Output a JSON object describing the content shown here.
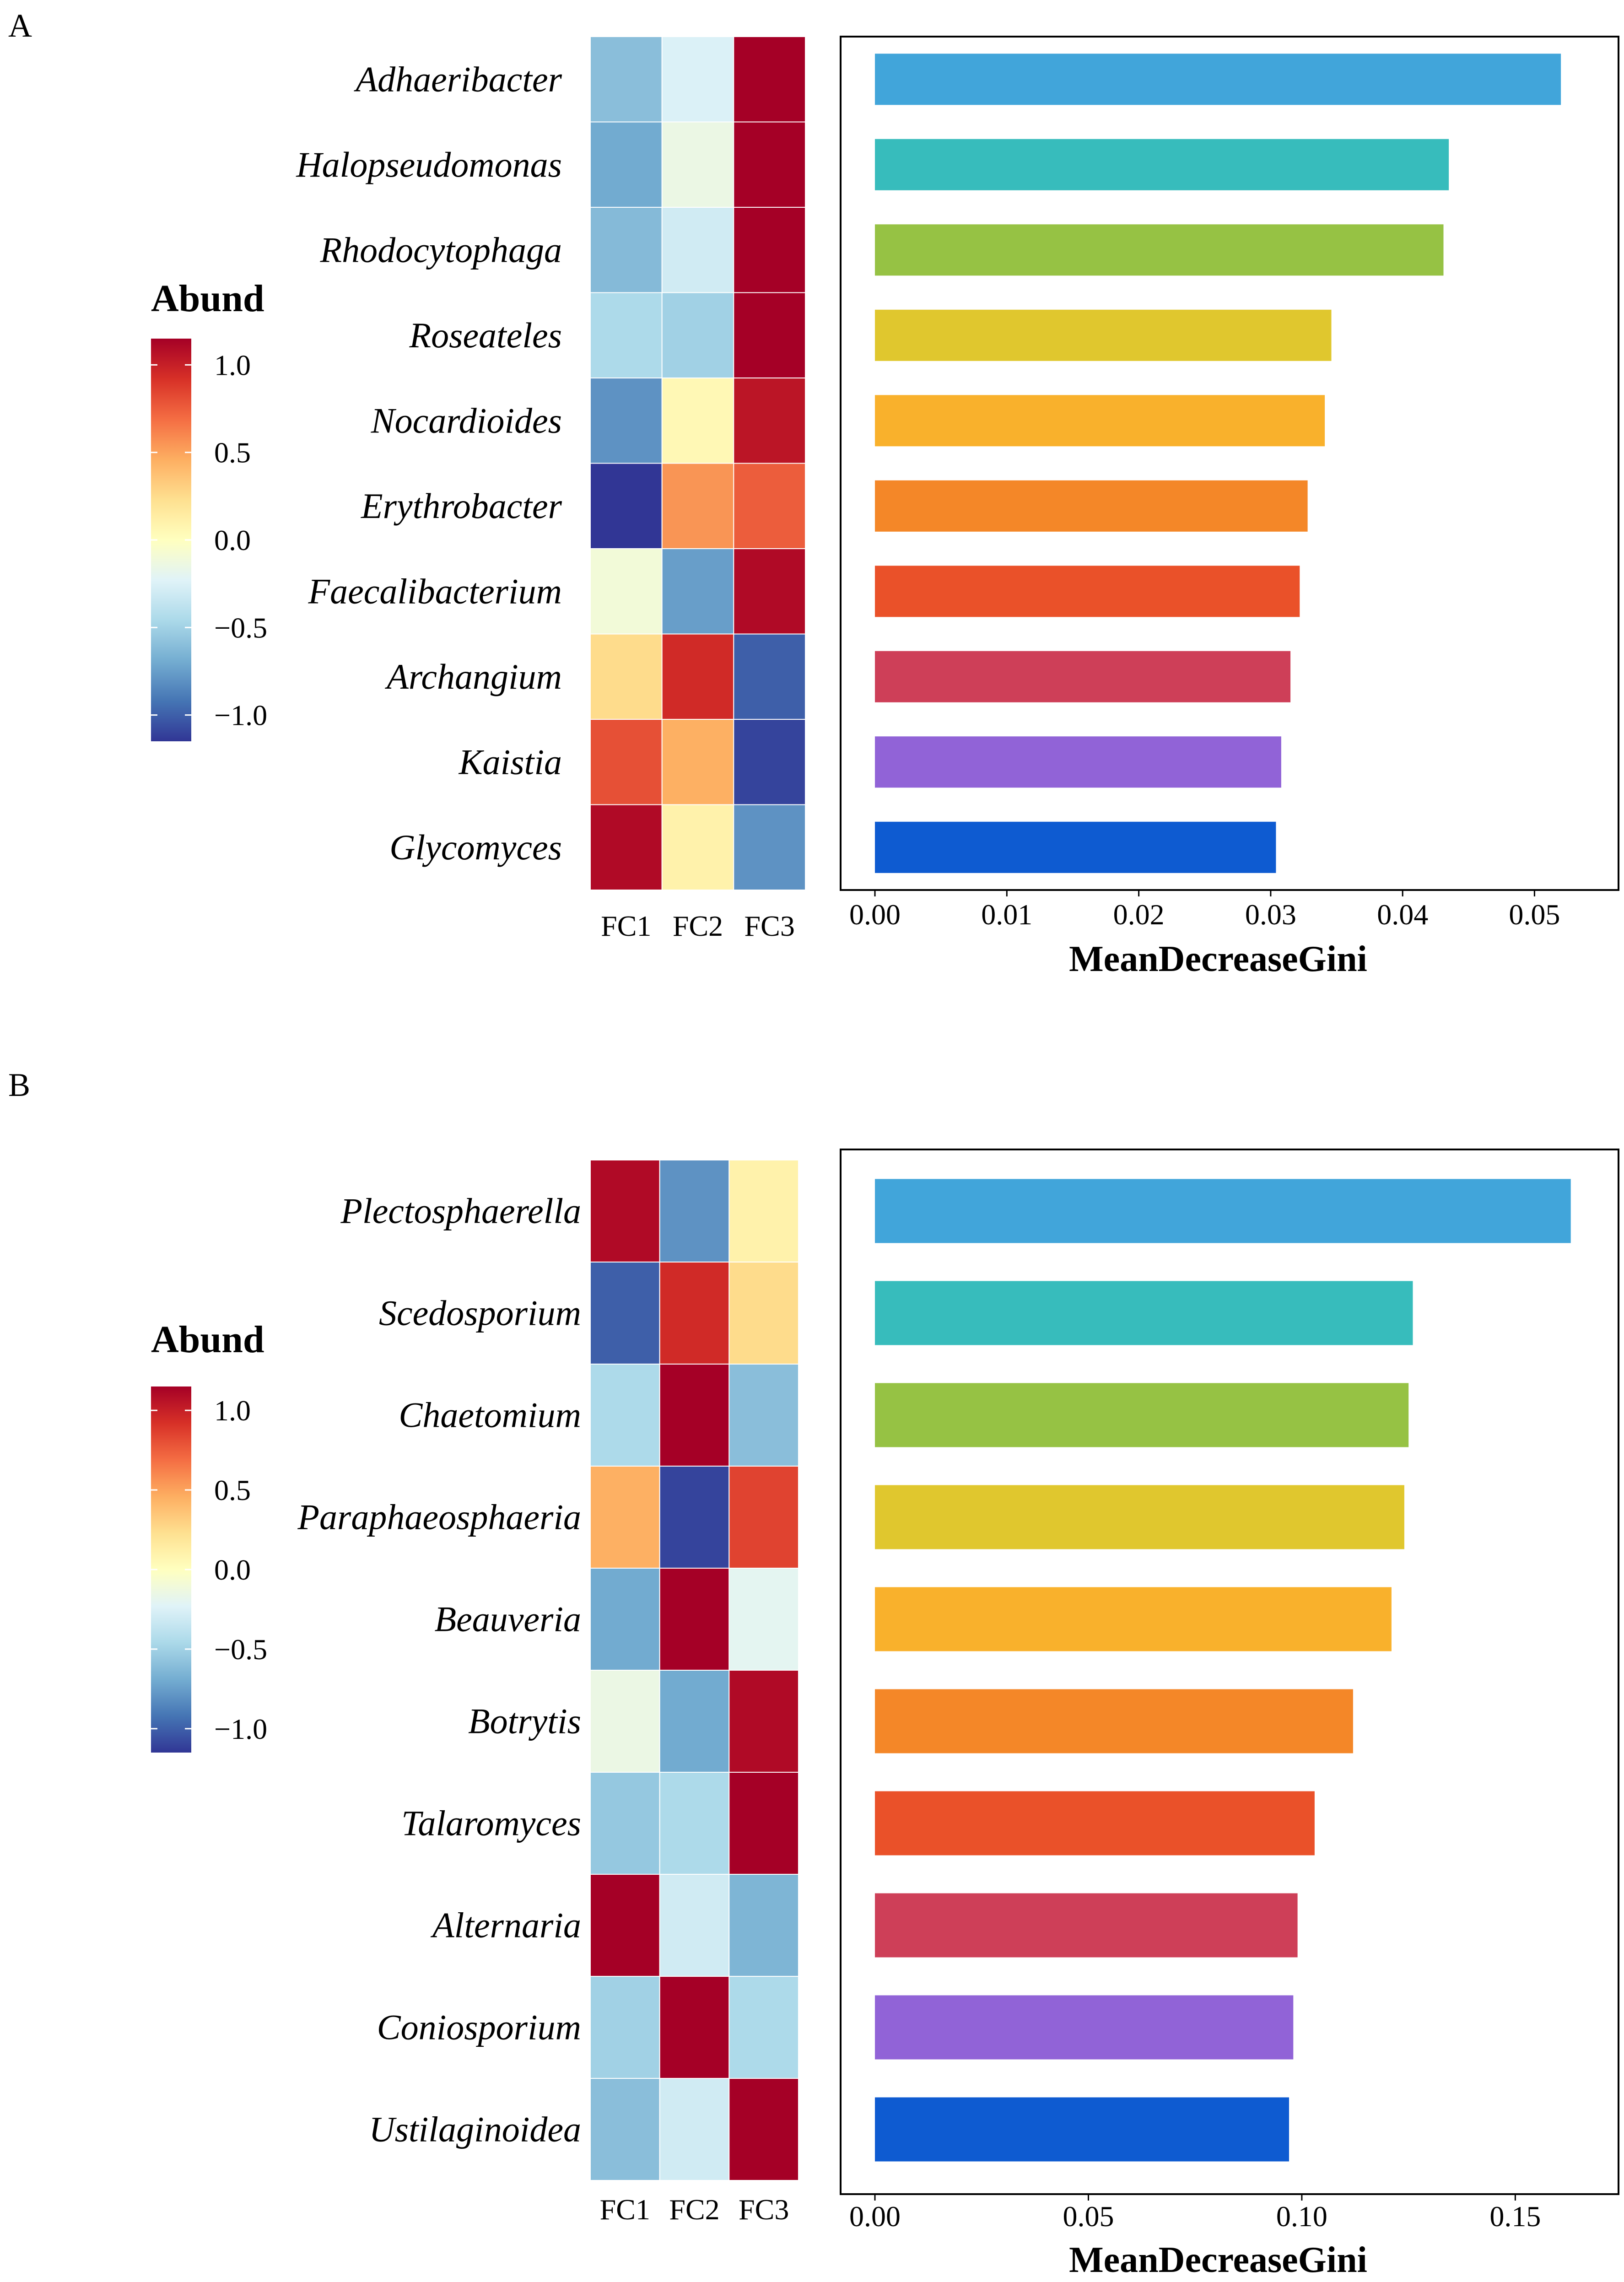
{
  "colors": {
    "low": "#313695",
    "mid": "#FFFFBF",
    "high": "#A50026",
    "bar_colors": [
      "#41A5DA",
      "#37BCBC",
      "#96C244",
      "#E0C72E",
      "#F9B12C",
      "#F48728",
      "#EA5129",
      "#CE3F58",
      "#9163D7",
      "#0E5BD1"
    ]
  },
  "chart_data": [
    {
      "panel": "A",
      "type": "bar",
      "orientation": "horizontal",
      "categories": [
        "Adhaeribacter",
        "Halopseudomonas",
        "Rhodocytophaga",
        "Roseateles",
        "Nocardioides",
        "Erythrobacter",
        "Faecalibacterium",
        "Archangium",
        "Kaistia",
        "Glycomyces"
      ],
      "values": [
        0.052,
        0.0435,
        0.0431,
        0.0346,
        0.0341,
        0.0328,
        0.0322,
        0.0315,
        0.0308,
        0.0304
      ],
      "xlabel": "MeanDecreaseGini",
      "xlim": [
        0,
        0.0555
      ],
      "xticks": [
        0,
        0.01,
        0.02,
        0.03,
        0.04,
        0.05
      ],
      "xtick_labels": [
        "0.00",
        "0.01",
        "0.02",
        "0.03",
        "0.04",
        "0.05"
      ],
      "heatmap": {
        "columns": [
          "FC1",
          "FC2",
          "FC3"
        ],
        "values": [
          [
            -0.6,
            -0.25,
            1.15
          ],
          [
            -0.7,
            -0.15,
            1.15
          ],
          [
            -0.62,
            -0.3,
            1.15
          ],
          [
            -0.45,
            -0.5,
            1.15
          ],
          [
            -0.8,
            0.05,
            1.05
          ],
          [
            -1.15,
            0.55,
            0.75
          ],
          [
            -0.1,
            -0.75,
            1.1
          ],
          [
            0.25,
            0.95,
            -1.0
          ],
          [
            0.8,
            0.45,
            -1.1
          ],
          [
            1.1,
            0.1,
            -0.8
          ]
        ]
      },
      "legend": {
        "title": "Abund",
        "ticks": [
          1.0,
          0.5,
          0.0,
          -0.5,
          -1.0
        ],
        "tick_labels": [
          "1.0",
          "0.5",
          "0.0",
          "−0.5",
          "−1.0"
        ],
        "range": [
          -1.15,
          1.15
        ]
      }
    },
    {
      "panel": "B",
      "type": "bar",
      "orientation": "horizontal",
      "categories": [
        "Plectosphaerella",
        "Scedosporium",
        "Chaetomium",
        "Paraphaeosphaeria",
        "Beauveria",
        "Botrytis",
        "Talaromyces",
        "Alternaria",
        "Coniosporium",
        "Ustilaginoidea"
      ],
      "values": [
        0.163,
        0.126,
        0.125,
        0.124,
        0.121,
        0.112,
        0.103,
        0.099,
        0.098,
        0.097
      ],
      "xlabel": "MeanDecreaseGini",
      "xlim": [
        0,
        0.1715
      ],
      "xticks": [
        0,
        0.05,
        0.1,
        0.15
      ],
      "xtick_labels": [
        "0.00",
        "0.05",
        "0.10",
        "0.15"
      ],
      "heatmap": {
        "columns": [
          "FC1",
          "FC2",
          "FC3"
        ],
        "values": [
          [
            1.1,
            -0.8,
            0.1
          ],
          [
            -1.0,
            0.95,
            0.25
          ],
          [
            -0.45,
            1.15,
            -0.6
          ],
          [
            0.45,
            -1.1,
            0.85
          ],
          [
            -0.7,
            1.15,
            -0.2
          ],
          [
            -0.15,
            -0.7,
            1.1
          ],
          [
            -0.55,
            -0.45,
            1.15
          ],
          [
            1.15,
            -0.3,
            -0.65
          ],
          [
            -0.5,
            1.15,
            -0.45
          ],
          [
            -0.6,
            -0.3,
            1.15
          ]
        ]
      },
      "legend": {
        "title": "Abund",
        "ticks": [
          1.0,
          0.5,
          0.0,
          -0.5,
          -1.0
        ],
        "tick_labels": [
          "1.0",
          "0.5",
          "0.0",
          "−0.5",
          "−1.0"
        ],
        "range": [
          -1.15,
          1.15
        ]
      }
    }
  ]
}
